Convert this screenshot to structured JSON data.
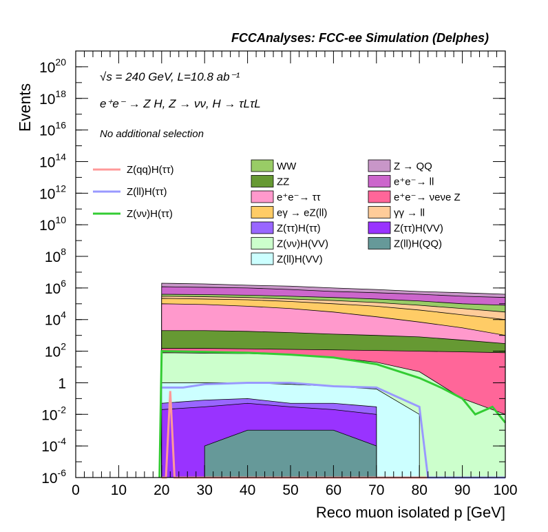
{
  "chart_data": {
    "type": "stacked-histogram",
    "title": "FCCAnalyses: FCC-ee Simulation (Delphes)",
    "xlabel": "Reco muon isolated p [GeV]",
    "ylabel": "Events",
    "xlim": [
      0,
      100
    ],
    "ylim": [
      1e-06,
      1e+21
    ],
    "yscale": "log",
    "x_ticks": [
      0,
      10,
      20,
      30,
      40,
      50,
      60,
      70,
      80,
      90,
      100
    ],
    "y_tick_labels": [
      {
        "base": "10",
        "exp": "-6",
        "value": 1e-06
      },
      {
        "base": "10",
        "exp": "-4",
        "value": 0.0001
      },
      {
        "base": "10",
        "exp": "-2",
        "value": 0.01
      },
      {
        "base": "1",
        "exp": "",
        "value": 1
      },
      {
        "base": "10",
        "exp": "2",
        "value": 100.0
      },
      {
        "base": "10",
        "exp": "4",
        "value": 10000.0
      },
      {
        "base": "10",
        "exp": "6",
        "value": 1000000.0
      },
      {
        "base": "10",
        "exp": "8",
        "value": 100000000.0
      },
      {
        "base": "10",
        "exp": "10",
        "value": 10000000000.0
      },
      {
        "base": "10",
        "exp": "12",
        "value": 1000000000000.0
      },
      {
        "base": "10",
        "exp": "14",
        "value": 100000000000000.0
      },
      {
        "base": "10",
        "exp": "16",
        "value": 1e+16
      },
      {
        "base": "10",
        "exp": "18",
        "value": 1e+18
      },
      {
        "base": "10",
        "exp": "20",
        "value": 1e+20
      }
    ],
    "annotations": {
      "energy": "√s = 240 GeV, L=10.8 ab⁻¹",
      "process": "e⁺e⁻ → Z H, Z → νν, H → τLτL",
      "selection": "No additional selection"
    },
    "backgrounds": [
      {
        "name": "Z → QQ",
        "color": "#c896c8",
        "top": [
          [
            20,
            2000000.0
          ],
          [
            30,
            1800000.0
          ],
          [
            40,
            1500000.0
          ],
          [
            50,
            1300000.0
          ],
          [
            60,
            1000000.0
          ],
          [
            70,
            800000.0
          ],
          [
            80,
            600000.0
          ],
          [
            90,
            500000.0
          ],
          [
            100,
            400000.0
          ]
        ]
      },
      {
        "name": "e⁺e⁻→ ll",
        "color": "#cc66cc",
        "top": [
          [
            20,
            1200000.0
          ],
          [
            30,
            1100000.0
          ],
          [
            40,
            1000000.0
          ],
          [
            50,
            800000.0
          ],
          [
            60,
            600000.0
          ],
          [
            70,
            500000.0
          ],
          [
            80,
            400000.0
          ],
          [
            90,
            300000.0
          ],
          [
            100,
            250000.0
          ]
        ]
      },
      {
        "name": "WW",
        "color": "#99cc66",
        "top": [
          [
            20,
            400000.0
          ],
          [
            30,
            380000.0
          ],
          [
            40,
            350000.0
          ],
          [
            50,
            300000.0
          ],
          [
            60,
            250000.0
          ],
          [
            70,
            200000.0
          ],
          [
            80,
            150000.0
          ],
          [
            90,
            100000.0
          ],
          [
            100,
            80000.0
          ]
        ]
      },
      {
        "name": "γγ → ll",
        "color": "#ffcc99",
        "top": [
          [
            20,
            300000.0
          ],
          [
            30,
            280000.0
          ],
          [
            40,
            250000.0
          ],
          [
            50,
            200000.0
          ],
          [
            60,
            160000.0
          ],
          [
            70,
            120000.0
          ],
          [
            80,
            80000.0
          ],
          [
            90,
            50000.0
          ],
          [
            100,
            30000.0
          ]
        ]
      },
      {
        "name": "eγ → eZ(ll)",
        "color": "#ffcc66",
        "top": [
          [
            20,
            220000.0
          ],
          [
            30,
            200000.0
          ],
          [
            40,
            180000.0
          ],
          [
            50,
            140000.0
          ],
          [
            60,
            100000.0
          ],
          [
            70,
            70000.0
          ],
          [
            80,
            40000.0
          ],
          [
            90,
            20000.0
          ],
          [
            100,
            10000.0
          ]
        ]
      },
      {
        "name": "e⁺e⁻→ ττ",
        "color": "#ff99cc",
        "top": [
          [
            20,
            100000.0
          ],
          [
            30,
            90000.0
          ],
          [
            40,
            70000.0
          ],
          [
            50,
            50000.0
          ],
          [
            60,
            30000.0
          ],
          [
            70,
            15000.0
          ],
          [
            80,
            7000.0
          ],
          [
            90,
            3000.0
          ],
          [
            100,
            1000.0
          ]
        ]
      },
      {
        "name": "ZZ",
        "color": "#669933",
        "top": [
          [
            20,
            2000.0
          ],
          [
            30,
            2000.0
          ],
          [
            40,
            1800.0
          ],
          [
            50,
            1500.0
          ],
          [
            60,
            1200.0
          ],
          [
            70,
            1000.0
          ],
          [
            80,
            800.0
          ],
          [
            90,
            500.0
          ],
          [
            100,
            300.0
          ]
        ]
      },
      {
        "name": "e⁺e⁻→ νeνe Z",
        "color": "#ff6699",
        "top": [
          [
            20,
            150
          ],
          [
            30,
            150
          ],
          [
            40,
            140
          ],
          [
            50,
            130
          ],
          [
            60,
            120
          ],
          [
            70,
            110
          ],
          [
            80,
            100
          ],
          [
            90,
            90
          ],
          [
            100,
            80
          ]
        ]
      },
      {
        "name": "Z(νν)H(VV)",
        "color": "#ccffcc",
        "top": [
          [
            20,
            80
          ],
          [
            30,
            75
          ],
          [
            40,
            70
          ],
          [
            50,
            60
          ],
          [
            60,
            40
          ],
          [
            70,
            20
          ],
          [
            80,
            5
          ],
          [
            90,
            0.1
          ],
          [
            100,
            0.01
          ]
        ]
      },
      {
        "name": "Z(ll)H(VV)",
        "color": "#ccffff",
        "top": [
          [
            20,
            1
          ],
          [
            30,
            1
          ],
          [
            40,
            1
          ],
          [
            50,
            0.8
          ],
          [
            60,
            0.6
          ],
          [
            70,
            0.4
          ],
          [
            80,
            0.01
          ]
        ]
      },
      {
        "name": "Z(ττ)H(ττ)",
        "color": "#9966ff",
        "top": [
          [
            20,
            0.05
          ],
          [
            30,
            0.08
          ],
          [
            40,
            0.1
          ],
          [
            50,
            0.05
          ],
          [
            60,
            0.05
          ],
          [
            70,
            0.03
          ]
        ]
      },
      {
        "name": "Z(ττ)H(VV)",
        "color": "#9933ff",
        "top": [
          [
            20,
            0.02
          ],
          [
            30,
            0.03
          ],
          [
            40,
            0.05
          ],
          [
            50,
            0.03
          ],
          [
            60,
            0.02
          ],
          [
            70,
            0.01
          ]
        ]
      },
      {
        "name": "Z(ll)H(QQ)",
        "color": "#669999",
        "top": [
          [
            30,
            0.0001
          ],
          [
            40,
            0.001
          ],
          [
            50,
            0.001
          ],
          [
            60,
            0.001
          ],
          [
            70,
            0.0001
          ]
        ]
      }
    ],
    "signals": [
      {
        "name": "Z(qq)H(ττ)",
        "color": "#ff9999",
        "points": [
          [
            20,
            1e-06
          ],
          [
            21,
            1e-06
          ],
          [
            22,
            0.3
          ],
          [
            23,
            1e-06
          ],
          [
            100,
            1e-06
          ]
        ]
      },
      {
        "name": "Z(ll)H(ττ)",
        "color": "#9999ff",
        "points": [
          [
            20,
            0.5
          ],
          [
            25,
            0.5
          ],
          [
            30,
            0.8
          ],
          [
            40,
            1
          ],
          [
            50,
            1
          ],
          [
            60,
            0.6
          ],
          [
            70,
            0.5
          ],
          [
            80,
            0.03
          ],
          [
            82,
            1e-06
          ],
          [
            100,
            1e-06
          ]
        ]
      },
      {
        "name": "Z(νν)H(ττ)",
        "color": "#33cc33",
        "points": [
          [
            19.5,
            1e-06
          ],
          [
            20,
            100
          ],
          [
            30,
            90
          ],
          [
            40,
            80
          ],
          [
            50,
            60
          ],
          [
            60,
            40
          ],
          [
            70,
            15
          ],
          [
            80,
            2
          ],
          [
            85,
            0.5
          ],
          [
            90,
            0.1
          ],
          [
            93,
            0.01
          ],
          [
            97,
            0.03
          ],
          [
            100,
            0.003
          ]
        ]
      }
    ]
  }
}
